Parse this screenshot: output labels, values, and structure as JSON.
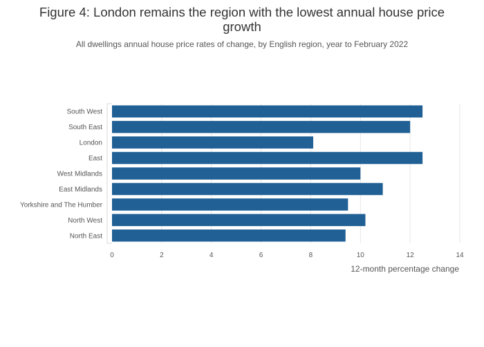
{
  "chart_data": {
    "type": "bar",
    "orientation": "horizontal",
    "title": "Figure 4: London remains the region with the lowest annual house price growth",
    "subtitle": "All dwellings annual house price rates of change, by English region, year to February 2022",
    "xlabel": "12-month percentage change",
    "ylabel": "",
    "categories": [
      "South West",
      "South East",
      "London",
      "East",
      "West Midlands",
      "East Midlands",
      "Yorkshire and The Humber",
      "North West",
      "North East"
    ],
    "values": [
      12.5,
      12.0,
      8.1,
      12.5,
      10.0,
      10.9,
      9.5,
      10.2,
      9.4
    ],
    "xlim": [
      0,
      14
    ],
    "xticks": [
      0,
      2,
      4,
      6,
      8,
      10,
      12,
      14
    ],
    "bar_color": "#206095",
    "grid": true
  }
}
